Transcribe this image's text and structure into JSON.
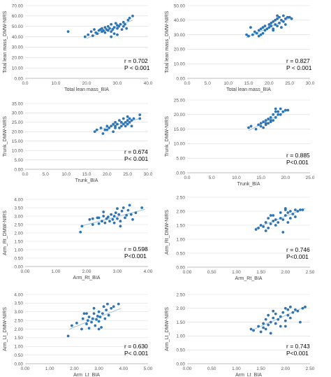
{
  "colors": {
    "point": "#2e75b6",
    "trendline": "#9dc3e6",
    "gridline": "#d9d9d9",
    "axis": "#a6a6a6",
    "text": "#404040"
  },
  "chart_data": [
    {
      "type": "scatter",
      "xlabel": "Total lean mass_BIA",
      "ylabel": "Total lean mass_DMW-NIRS",
      "xlim": [
        0,
        40
      ],
      "ylim": [
        0,
        70
      ],
      "xticks": [
        "0.0",
        "10.0",
        "20.0",
        "30.0",
        "40.0"
      ],
      "yticks": [
        "0.00",
        "10.00",
        "20.00",
        "30.00",
        "40.00",
        "50.00",
        "60.00",
        "70.00"
      ],
      "grid": true,
      "stat_r": "r = 0.702",
      "stat_p": "P < 0.001",
      "trendline": [
        [
          20,
          38.5
        ],
        [
          35,
          56
        ]
      ],
      "points": [
        [
          14,
          45
        ],
        [
          19.5,
          40
        ],
        [
          20.5,
          42
        ],
        [
          21.5,
          45
        ],
        [
          22,
          41
        ],
        [
          22.5,
          47
        ],
        [
          23,
          44
        ],
        [
          23.5,
          43
        ],
        [
          24,
          46
        ],
        [
          24.5,
          47
        ],
        [
          25,
          45
        ],
        [
          25,
          48
        ],
        [
          25.5,
          46
        ],
        [
          26,
          49
        ],
        [
          26,
          44
        ],
        [
          26.5,
          47
        ],
        [
          27,
          50
        ],
        [
          27,
          46
        ],
        [
          27.5,
          48
        ],
        [
          28,
          52
        ],
        [
          28,
          45
        ],
        [
          28.5,
          47
        ],
        [
          29,
          43
        ],
        [
          29,
          49
        ],
        [
          29.5,
          53
        ],
        [
          30,
          48
        ],
        [
          30,
          51
        ],
        [
          30.5,
          50
        ],
        [
          31,
          52
        ],
        [
          31.5,
          47
        ],
        [
          32,
          54
        ],
        [
          32,
          50
        ],
        [
          32.5,
          52
        ],
        [
          33,
          48
        ],
        [
          33.5,
          56
        ],
        [
          34,
          58
        ],
        [
          35,
          60
        ],
        [
          28,
          40
        ],
        [
          30,
          42
        ],
        [
          31,
          52
        ]
      ]
    },
    {
      "type": "scatter",
      "xlabel": "Total lean mass_BIA",
      "ylabel": "Total lean mass_DMW-NIRS",
      "xlim": [
        0,
        30
      ],
      "ylim": [
        0,
        50
      ],
      "xticks": [
        "0.0",
        "5.0",
        "10.0",
        "15.0",
        "20.0",
        "25.0",
        "30.0"
      ],
      "yticks": [
        "0.00",
        "10.00",
        "20.00",
        "30.00",
        "40.00",
        "50.00"
      ],
      "grid": true,
      "stat_r": "r = 0.827",
      "stat_p": "P < 0.001",
      "trendline": [
        [
          14.5,
          28
        ],
        [
          25.5,
          42
        ]
      ],
      "points": [
        [
          14.5,
          30
        ],
        [
          15,
          29
        ],
        [
          16,
          30
        ],
        [
          16.5,
          32
        ],
        [
          17,
          31
        ],
        [
          17.5,
          33
        ],
        [
          17.5,
          29
        ],
        [
          18,
          34
        ],
        [
          18.5,
          31
        ],
        [
          18.5,
          35
        ],
        [
          19,
          33
        ],
        [
          19,
          36
        ],
        [
          19.5,
          34
        ],
        [
          20,
          35
        ],
        [
          20,
          37
        ],
        [
          20.5,
          36
        ],
        [
          20.5,
          38
        ],
        [
          21,
          34
        ],
        [
          21,
          39
        ],
        [
          21.5,
          37
        ],
        [
          21.5,
          40
        ],
        [
          22,
          36
        ],
        [
          22,
          41
        ],
        [
          22,
          43
        ],
        [
          22.5,
          38
        ],
        [
          22.5,
          42
        ],
        [
          23,
          40
        ],
        [
          23,
          35
        ],
        [
          23.5,
          39
        ],
        [
          23.5,
          43
        ],
        [
          24,
          41
        ],
        [
          24,
          37
        ],
        [
          24.5,
          42
        ],
        [
          25,
          42
        ],
        [
          25.5,
          41
        ],
        [
          15.5,
          35
        ],
        [
          18,
          30
        ],
        [
          21,
          33
        ]
      ]
    },
    {
      "type": "scatter",
      "xlabel": "Trunk_BIA",
      "ylabel": "Trunk_DMW-NIRS",
      "xlim": [
        0,
        30
      ],
      "ylim": [
        0,
        35
      ],
      "xticks": [
        "0.0",
        "5.0",
        "10.0",
        "15.0",
        "20.0",
        "25.0",
        "30.0"
      ],
      "yticks": [
        "0.00",
        "5.00",
        "10.00",
        "15.00",
        "20.00",
        "25.00",
        "30.00",
        "35.00"
      ],
      "grid": true,
      "stat_r": "r = 0.674",
      "stat_p": "P< 0.001",
      "trendline": [
        [
          17,
          20.5
        ],
        [
          28,
          27
        ]
      ],
      "points": [
        [
          17,
          20
        ],
        [
          17.5,
          21
        ],
        [
          18.5,
          22
        ],
        [
          19,
          19
        ],
        [
          19.5,
          21
        ],
        [
          20,
          23
        ],
        [
          20.5,
          22
        ],
        [
          21,
          23
        ],
        [
          21.5,
          24
        ],
        [
          21.5,
          20
        ],
        [
          22,
          23
        ],
        [
          22,
          25
        ],
        [
          22.5,
          24
        ],
        [
          23,
          22
        ],
        [
          23,
          26
        ],
        [
          23.5,
          25
        ],
        [
          23.5,
          23
        ],
        [
          24,
          24
        ],
        [
          24,
          27
        ],
        [
          24.5,
          25
        ],
        [
          24.5,
          23
        ],
        [
          25,
          26
        ],
        [
          25,
          24
        ],
        [
          25,
          28
        ],
        [
          25.5,
          25
        ],
        [
          25.5,
          27
        ],
        [
          26,
          26
        ],
        [
          26,
          23
        ],
        [
          26.5,
          27
        ],
        [
          28,
          29
        ],
        [
          28,
          27
        ],
        [
          20,
          21
        ],
        [
          22,
          22
        ]
      ]
    },
    {
      "type": "scatter",
      "xlabel": "Trunk_BIA",
      "ylabel": "Trunk_DMW-NIRS",
      "xlim": [
        0,
        25
      ],
      "ylim": [
        0,
        25
      ],
      "xticks": [
        "0.0",
        "5.0",
        "10.0",
        "15.0",
        "20.0",
        "25.0"
      ],
      "yticks": [
        "0.00",
        "5.00",
        "10.00",
        "15.00",
        "20.00",
        "25.00"
      ],
      "grid": true,
      "stat_r": "r = 0.885",
      "stat_p": "P<0.001",
      "trendline": [
        [
          12.5,
          14.5
        ],
        [
          20.5,
          21.5
        ]
      ],
      "points": [
        [
          12.5,
          15.5
        ],
        [
          13,
          16
        ],
        [
          14,
          15
        ],
        [
          14.5,
          16.5
        ],
        [
          15,
          16
        ],
        [
          15,
          17
        ],
        [
          15.5,
          17.5
        ],
        [
          15.5,
          15.5
        ],
        [
          16,
          17
        ],
        [
          16,
          18
        ],
        [
          16.5,
          18.5
        ],
        [
          16.5,
          17
        ],
        [
          17,
          18
        ],
        [
          17,
          19
        ],
        [
          17.5,
          18
        ],
        [
          17.5,
          20
        ],
        [
          18,
          19
        ],
        [
          18,
          21
        ],
        [
          18,
          22
        ],
        [
          18.5,
          20
        ],
        [
          18.5,
          21
        ],
        [
          19,
          20
        ],
        [
          19,
          22
        ],
        [
          19.5,
          21
        ],
        [
          20,
          21.5
        ],
        [
          20.5,
          21.5
        ],
        [
          16,
          16.5
        ],
        [
          17,
          17.5
        ]
      ]
    },
    {
      "type": "scatter",
      "xlabel": "Arm_Rt_BIA",
      "ylabel": "Arm_Rt_DMW-NIRS",
      "xlim": [
        0,
        4
      ],
      "ylim": [
        0,
        4
      ],
      "xticks": [
        "0.00",
        "1.00",
        "2.00",
        "3.00",
        "4.00"
      ],
      "yticks": [
        "0.00",
        "0.50",
        "1.00",
        "1.50",
        "2.00",
        "2.50",
        "3.00",
        "3.50",
        "4.00"
      ],
      "grid": true,
      "stat_r": "r = 0.598",
      "stat_p": "P<0.001",
      "trendline": [
        [
          1.8,
          2.4
        ],
        [
          3.9,
          3.4
        ]
      ],
      "points": [
        [
          1.8,
          2.05
        ],
        [
          1.85,
          2.4
        ],
        [
          2.1,
          2.8
        ],
        [
          2.2,
          2.85
        ],
        [
          2.2,
          2.5
        ],
        [
          2.35,
          2.9
        ],
        [
          2.4,
          2.55
        ],
        [
          2.5,
          2.7
        ],
        [
          2.55,
          3.0
        ],
        [
          2.55,
          3.25
        ],
        [
          2.6,
          2.6
        ],
        [
          2.65,
          2.85
        ],
        [
          2.7,
          2.95
        ],
        [
          2.75,
          2.7
        ],
        [
          2.8,
          3.1
        ],
        [
          2.85,
          2.8
        ],
        [
          2.9,
          2.6
        ],
        [
          2.9,
          3.0
        ],
        [
          2.95,
          3.2
        ],
        [
          3.0,
          2.85
        ],
        [
          3.05,
          3.1
        ],
        [
          3.1,
          2.7
        ],
        [
          3.1,
          2.4
        ],
        [
          3.15,
          3.3
        ],
        [
          3.2,
          3.5
        ],
        [
          3.25,
          2.9
        ],
        [
          3.3,
          3.05
        ],
        [
          3.35,
          3.35
        ],
        [
          3.4,
          3.65
        ],
        [
          3.45,
          3.1
        ],
        [
          3.5,
          2.8
        ],
        [
          3.6,
          3.2
        ],
        [
          3.8,
          3.5
        ],
        [
          2.4,
          2.9
        ],
        [
          3.0,
          3.45
        ]
      ]
    },
    {
      "type": "scatter",
      "xlabel": "Arm_Rt_BIA",
      "ylabel": "Arm_Rt_DMW-NIRS",
      "xlim": [
        0,
        2.5
      ],
      "ylim": [
        0,
        2.5
      ],
      "xticks": [
        "0.00",
        "0.50",
        "1.00",
        "1.50",
        "2.00",
        "2.50"
      ],
      "yticks": [
        "0.00",
        "0.50",
        "1.00",
        "1.50",
        "2.00",
        "2.50"
      ],
      "grid": true,
      "stat_r": "r = 0.746",
      "stat_p": "P<0.001",
      "trendline": [
        [
          1.4,
          1.4
        ],
        [
          2.4,
          2.1
        ]
      ],
      "points": [
        [
          1.4,
          1.35
        ],
        [
          1.45,
          1.4
        ],
        [
          1.5,
          1.5
        ],
        [
          1.55,
          1.45
        ],
        [
          1.6,
          1.6
        ],
        [
          1.65,
          1.4
        ],
        [
          1.65,
          1.75
        ],
        [
          1.7,
          1.55
        ],
        [
          1.75,
          1.65
        ],
        [
          1.75,
          1.85
        ],
        [
          1.8,
          1.5
        ],
        [
          1.8,
          1.7
        ],
        [
          1.85,
          1.6
        ],
        [
          1.9,
          1.75
        ],
        [
          1.9,
          1.95
        ],
        [
          1.95,
          1.7
        ],
        [
          1.95,
          1.25
        ],
        [
          2.0,
          2.05
        ],
        [
          2.0,
          1.85
        ],
        [
          2.05,
          1.95
        ],
        [
          2.05,
          1.6
        ],
        [
          2.1,
          2.0
        ],
        [
          2.1,
          1.75
        ],
        [
          2.15,
          1.9
        ],
        [
          2.2,
          2.05
        ],
        [
          2.2,
          1.8
        ],
        [
          2.25,
          2.0
        ],
        [
          2.3,
          2.05
        ],
        [
          2.35,
          2.05
        ],
        [
          1.6,
          1.3
        ],
        [
          1.7,
          1.85
        ],
        [
          2.0,
          2.1
        ]
      ]
    },
    {
      "type": "scatter",
      "xlabel": "Arm_Lt_BIA",
      "ylabel": "Arm_Lt_DMW-NIRS",
      "xlim": [
        0,
        5
      ],
      "ylim": [
        0,
        4
      ],
      "xticks": [
        "0.00",
        "1.00",
        "2.00",
        "3.00",
        "4.00",
        "5.00"
      ],
      "yticks": [
        "0.00",
        "0.50",
        "1.00",
        "1.50",
        "2.00",
        "2.50",
        "3.00",
        "3.50",
        "4.00"
      ],
      "grid": true,
      "stat_r": "r = 0.630",
      "stat_p": "P< 0.001",
      "trendline": [
        [
          1.8,
          2.0
        ],
        [
          3.9,
          3.2
        ]
      ],
      "points": [
        [
          1.75,
          1.6
        ],
        [
          1.9,
          2.2
        ],
        [
          2.1,
          2.35
        ],
        [
          2.3,
          2.0
        ],
        [
          2.35,
          2.6
        ],
        [
          2.4,
          2.9
        ],
        [
          2.5,
          2.3
        ],
        [
          2.55,
          2.5
        ],
        [
          2.6,
          2.05
        ],
        [
          2.6,
          2.7
        ],
        [
          2.7,
          2.4
        ],
        [
          2.75,
          2.6
        ],
        [
          2.8,
          2.9
        ],
        [
          2.85,
          2.2
        ],
        [
          2.9,
          2.55
        ],
        [
          2.95,
          2.75
        ],
        [
          3.0,
          2.45
        ],
        [
          3.0,
          3.0
        ],
        [
          3.05,
          2.7
        ],
        [
          3.1,
          2.1
        ],
        [
          3.15,
          2.9
        ],
        [
          3.2,
          3.3
        ],
        [
          3.25,
          2.6
        ],
        [
          3.3,
          3.1
        ],
        [
          3.35,
          3.45
        ],
        [
          3.4,
          2.8
        ],
        [
          3.5,
          3.2
        ],
        [
          3.6,
          3.3
        ],
        [
          3.8,
          3.45
        ],
        [
          2.5,
          2.9
        ],
        [
          3.0,
          2.0
        ],
        [
          2.8,
          3.2
        ]
      ]
    },
    {
      "type": "scatter",
      "xlabel": "Arm_Lt_BIA",
      "ylabel": "Arm_Lt_DMW-NIRS",
      "xlim": [
        0,
        2.5
      ],
      "ylim": [
        0,
        2.5
      ],
      "xticks": [
        "0.00",
        "0.50",
        "1.00",
        "1.50",
        "2.00",
        "2.50"
      ],
      "yticks": [
        "0.00",
        "0.50",
        "1.00",
        "1.50",
        "2.00",
        "2.50"
      ],
      "grid": true,
      "stat_r": "r = 0.743",
      "stat_p": "P<0.001",
      "trendline": [
        [
          1.3,
          1.2
        ],
        [
          2.4,
          2.05
        ]
      ],
      "points": [
        [
          1.3,
          1.25
        ],
        [
          1.35,
          1.2
        ],
        [
          1.45,
          1.35
        ],
        [
          1.5,
          1.15
        ],
        [
          1.55,
          1.45
        ],
        [
          1.55,
          1.3
        ],
        [
          1.6,
          1.6
        ],
        [
          1.65,
          1.4
        ],
        [
          1.65,
          1.75
        ],
        [
          1.7,
          1.5
        ],
        [
          1.7,
          1.1
        ],
        [
          1.75,
          1.65
        ],
        [
          1.8,
          1.45
        ],
        [
          1.8,
          1.8
        ],
        [
          1.85,
          1.6
        ],
        [
          1.9,
          1.7
        ],
        [
          1.9,
          1.35
        ],
        [
          1.95,
          1.85
        ],
        [
          2.0,
          1.55
        ],
        [
          2.0,
          2.0
        ],
        [
          2.05,
          1.75
        ],
        [
          2.05,
          1.95
        ],
        [
          2.1,
          1.65
        ],
        [
          2.1,
          2.05
        ],
        [
          2.15,
          1.85
        ],
        [
          2.2,
          1.95
        ],
        [
          2.25,
          1.9
        ],
        [
          2.3,
          1.5
        ],
        [
          2.35,
          2.0
        ],
        [
          2.4,
          2.05
        ],
        [
          1.6,
          1.25
        ],
        [
          1.75,
          1.9
        ],
        [
          2.0,
          1.35
        ]
      ]
    }
  ]
}
